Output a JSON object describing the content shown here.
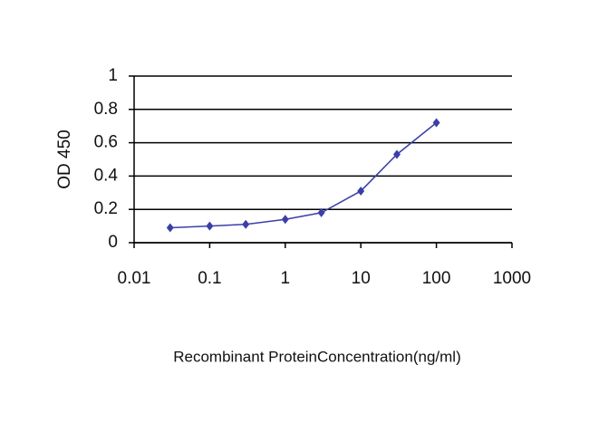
{
  "chart_data": {
    "type": "line",
    "x_label": "Recombinant ProteinConcentration(ng/ml)",
    "y_label": "OD 450",
    "x": [
      0.03,
      0.1,
      0.3,
      1,
      3,
      10,
      30,
      100
    ],
    "values": [
      0.09,
      0.1,
      0.11,
      0.14,
      0.18,
      0.31,
      0.53,
      0.72
    ],
    "color": "#3a3fa8",
    "x_log": true,
    "xlim": [
      0.01,
      1000
    ],
    "xticks": [
      0.01,
      0.1,
      1,
      10,
      100,
      1000
    ],
    "ylim": [
      0,
      1
    ],
    "yticks": [
      0,
      0.2,
      0.4,
      0.6,
      0.8,
      1
    ],
    "grid": true
  }
}
